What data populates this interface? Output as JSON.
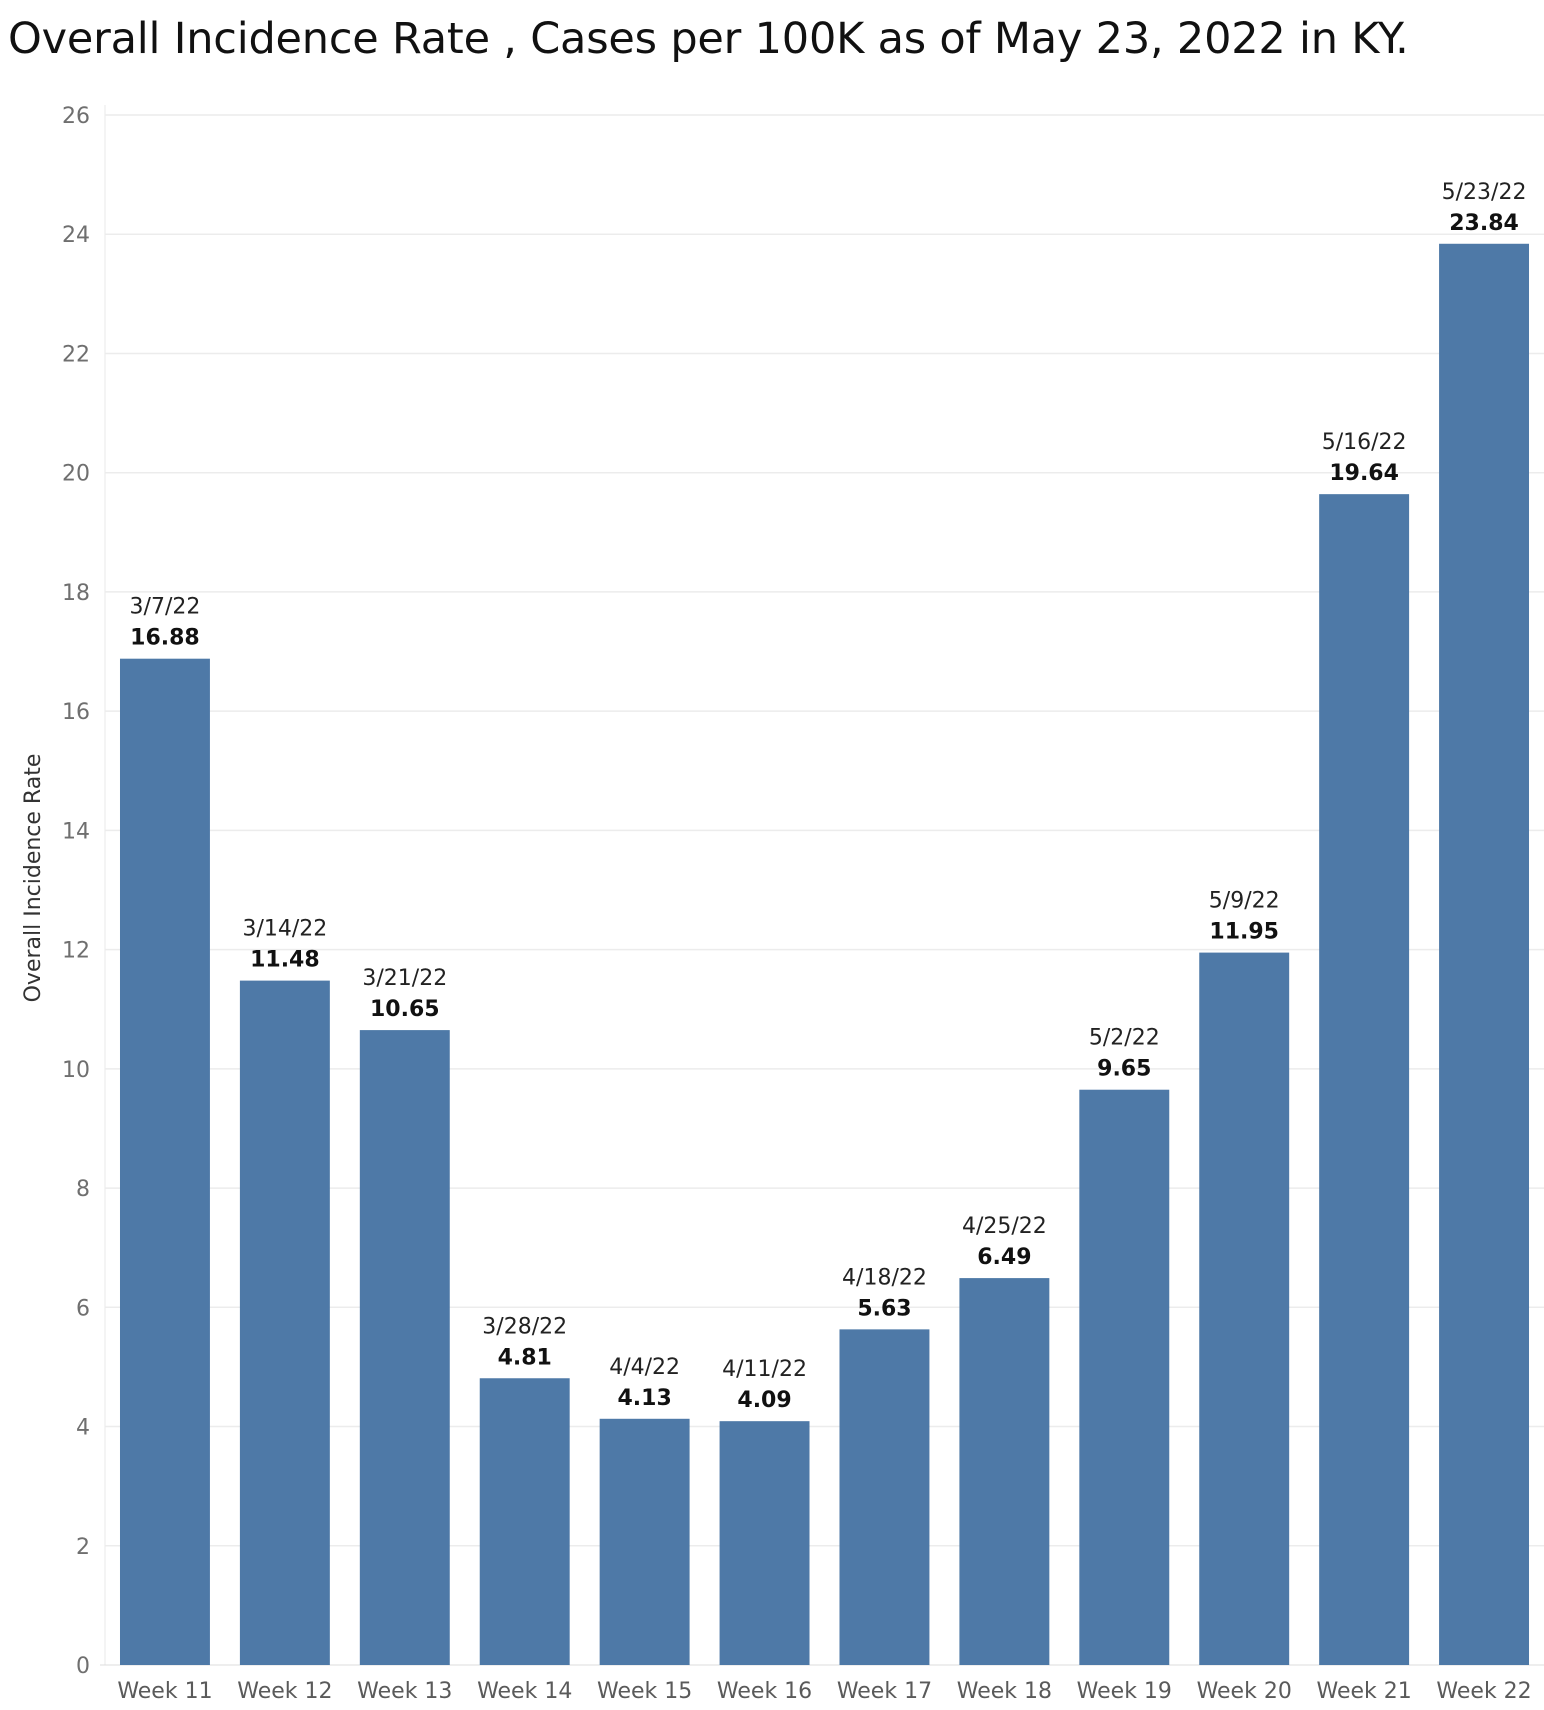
{
  "chart_data": {
    "type": "bar",
    "title": "Overall Incidence Rate , Cases per 100K as of May 23, 2022 in KY.",
    "xlabel": "",
    "ylabel": "Overall Incidence Rate",
    "ylim": [
      0,
      26
    ],
    "yticks": [
      0,
      2,
      4,
      6,
      8,
      10,
      12,
      14,
      16,
      18,
      20,
      22,
      24,
      26
    ],
    "grid": true,
    "bar_color": "#4e79a7",
    "categories": [
      "Week 11",
      "Week 12",
      "Week 13",
      "Week 14",
      "Week 15",
      "Week 16",
      "Week 17",
      "Week 18",
      "Week 19",
      "Week 20",
      "Week 21",
      "Week 22"
    ],
    "dates": [
      "3/7/22",
      "3/14/22",
      "3/21/22",
      "3/28/22",
      "4/4/22",
      "4/11/22",
      "4/18/22",
      "4/25/22",
      "5/2/22",
      "5/9/22",
      "5/16/22",
      "5/23/22"
    ],
    "values": [
      16.88,
      11.48,
      10.65,
      4.81,
      4.13,
      4.09,
      5.63,
      6.49,
      9.65,
      11.95,
      19.64,
      23.84
    ]
  }
}
